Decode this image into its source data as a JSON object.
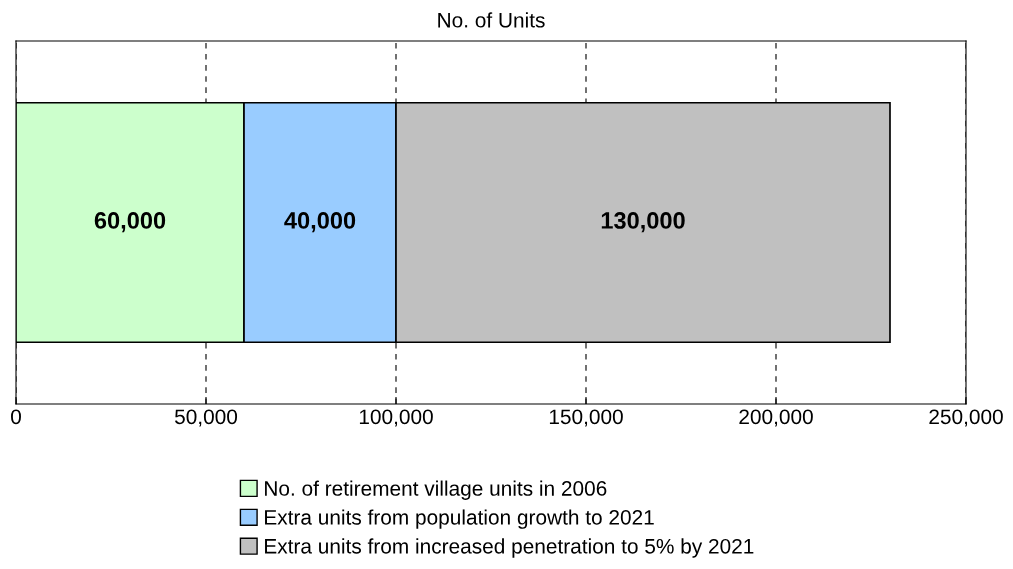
{
  "chart_data": {
    "type": "bar",
    "orientation": "horizontal",
    "stacked": true,
    "title": "No. of Units",
    "categories": [
      null
    ],
    "series": [
      {
        "name": "No. of retirement village units in 2006",
        "color": "#ccffcc",
        "values": [
          60000
        ],
        "value_labels": [
          "60,000"
        ]
      },
      {
        "name": "Extra units from population growth to 2021",
        "color": "#99ccff",
        "values": [
          40000
        ],
        "value_labels": [
          "40,000"
        ]
      },
      {
        "name": "Extra units from increased penetration to 5% by 2021",
        "color": "#c0c0c0",
        "values": [
          130000
        ],
        "value_labels": [
          "130,000"
        ]
      }
    ],
    "xlim": [
      0,
      250000
    ],
    "xticks": [
      0,
      {
        "value": 50000,
        "label": "50,000"
      },
      {
        "value": 100000,
        "label": "100,000"
      },
      {
        "value": 150000,
        "label": "150,000"
      },
      {
        "value": 200000,
        "label": "200,000"
      },
      {
        "value": 250000,
        "label": "250,000"
      }
    ],
    "grid": "x",
    "legend": "bottom",
    "tick_labels": "x"
  }
}
